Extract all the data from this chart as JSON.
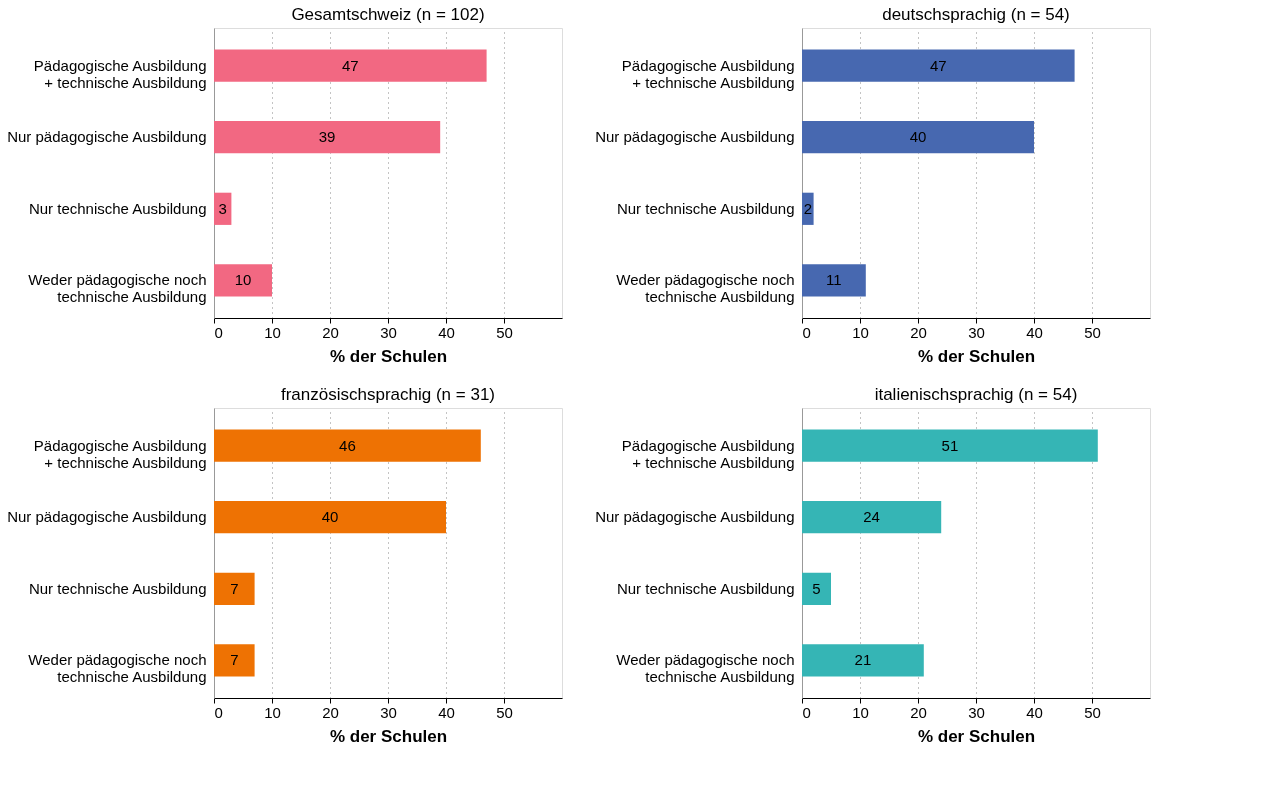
{
  "chart_data": [
    {
      "type": "bar",
      "orientation": "horizontal",
      "title": "Gesamtschweiz (n = 102)",
      "categories": [
        "Pädagogische Ausbildung\n+ technische Ausbildung",
        "Nur pädagogische Ausbildung",
        "Nur technische Ausbildung",
        "Weder pädagogische noch\ntechnische Ausbildung"
      ],
      "values": [
        47,
        39,
        3,
        10
      ],
      "color": "#f26882",
      "xlim": [
        0,
        60
      ],
      "xticks": [
        0,
        10,
        20,
        30,
        40,
        50
      ],
      "xlabel": "% der Schulen",
      "grid": "x",
      "data_labels": true
    },
    {
      "type": "bar",
      "orientation": "horizontal",
      "title": "deutschsprachig (n = 54)",
      "categories": [
        "Pädagogische Ausbildung\n+ technische Ausbildung",
        "Nur pädagogische Ausbildung",
        "Nur technische Ausbildung",
        "Weder pädagogische noch\ntechnische Ausbildung"
      ],
      "values": [
        47,
        40,
        2,
        11
      ],
      "color": "#4768b0",
      "xlim": [
        0,
        60
      ],
      "xticks": [
        0,
        10,
        20,
        30,
        40,
        50
      ],
      "xlabel": "% der Schulen",
      "grid": "x",
      "data_labels": true
    },
    {
      "type": "bar",
      "orientation": "horizontal",
      "title": "französischsprachig (n = 31)",
      "categories": [
        "Pädagogische Ausbildung\n+ technische Ausbildung",
        "Nur pädagogische Ausbildung",
        "Nur technische Ausbildung",
        "Weder pädagogische noch\ntechnische Ausbildung"
      ],
      "values": [
        46,
        40,
        7,
        7
      ],
      "color": "#ee7203",
      "xlim": [
        0,
        60
      ],
      "xticks": [
        0,
        10,
        20,
        30,
        40,
        50
      ],
      "xlabel": "% der Schulen",
      "grid": "x",
      "data_labels": true
    },
    {
      "type": "bar",
      "orientation": "horizontal",
      "title": "italienischsprachig (n = 54)",
      "categories": [
        "Pädagogische Ausbildung\n+ technische Ausbildung",
        "Nur pädagogische Ausbildung",
        "Nur technische Ausbildung",
        "Weder pädagogische noch\ntechnische Ausbildung"
      ],
      "values": [
        51,
        24,
        5,
        21
      ],
      "color": "#35b5b5",
      "xlim": [
        0,
        60
      ],
      "xticks": [
        0,
        10,
        20,
        30,
        40,
        50
      ],
      "xlabel": "% der Schulen",
      "grid": "x",
      "data_labels": true
    }
  ]
}
